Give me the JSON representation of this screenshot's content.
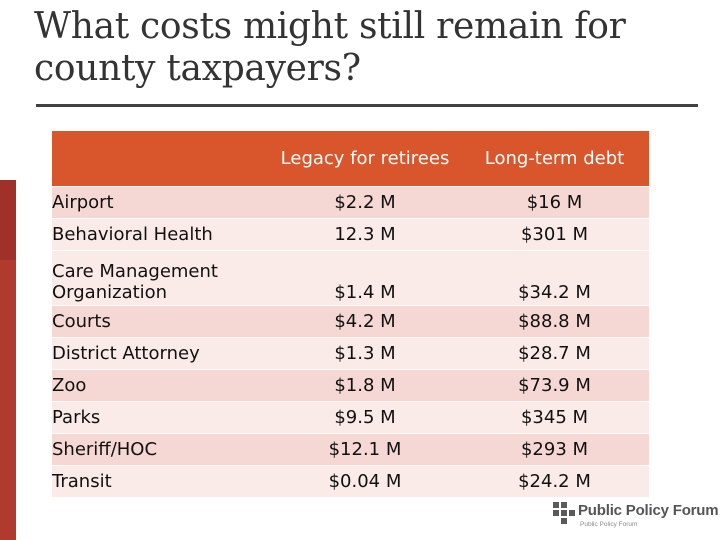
{
  "title": "What costs might still remain for county taxpayers?",
  "colors": {
    "header": "#d9552b",
    "row_odd": "#f5d8d3",
    "row_even": "#faebe8",
    "accent_bar": "#b03a2e"
  },
  "table": {
    "headers": [
      "",
      "Legacy for retirees",
      "Long-term debt"
    ],
    "rows": [
      {
        "label": "Airport",
        "legacy": "$2.2 M",
        "debt": "$16 M"
      },
      {
        "label": "Behavioral Health",
        "legacy": "12.3 M",
        "debt": "$301 M"
      },
      {
        "label": "Care Management Organization",
        "legacy": "$1.4 M",
        "debt": "$34.2 M"
      },
      {
        "label": "Courts",
        "legacy": "$4.2 M",
        "debt": "$88.8 M"
      },
      {
        "label": "District Attorney",
        "legacy": "$1.3 M",
        "debt": "$28.7 M"
      },
      {
        "label": "Zoo",
        "legacy": "$1.8 M",
        "debt": "$73.9 M"
      },
      {
        "label": "Parks",
        "legacy": "$9.5 M",
        "debt": "$345 M"
      },
      {
        "label": "Sheriff/HOC",
        "legacy": "$12.1 M",
        "debt": "$293 M"
      },
      {
        "label": "Transit",
        "legacy": "$0.04 M",
        "debt": "$24.2 M"
      }
    ]
  },
  "logo": {
    "name": "Public Policy Forum",
    "tagline": "Public Policy Forum",
    "icon": "ppf-logo-icon"
  }
}
